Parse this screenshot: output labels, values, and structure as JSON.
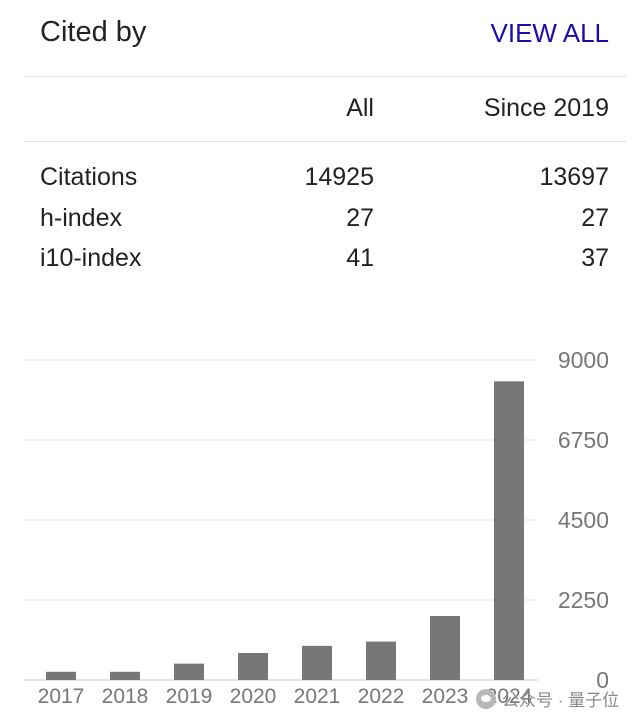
{
  "header": {
    "title": "Cited by",
    "view_all_label": "VIEW ALL"
  },
  "table": {
    "columns": {
      "all": "All",
      "since": "Since 2019"
    },
    "rows": [
      {
        "label": "Citations",
        "all": "14925",
        "since": "13697"
      },
      {
        "label": "h-index",
        "all": "27",
        "since": "27"
      },
      {
        "label": "i10-index",
        "all": "41",
        "since": "37"
      }
    ]
  },
  "chart_data": {
    "type": "bar",
    "categories": [
      "2017",
      "2018",
      "2019",
      "2020",
      "2021",
      "2022",
      "2023",
      "2024"
    ],
    "values": [
      230,
      230,
      460,
      760,
      960,
      1080,
      1800,
      8400
    ],
    "yticks": [
      "0",
      "2250",
      "4500",
      "6750",
      "9000"
    ],
    "ylim": [
      0,
      9000
    ],
    "grid": true,
    "bar_color": "#777777",
    "title": "",
    "xlabel": "",
    "ylabel": ""
  },
  "watermark": {
    "text": "公众号 · 量子位"
  }
}
